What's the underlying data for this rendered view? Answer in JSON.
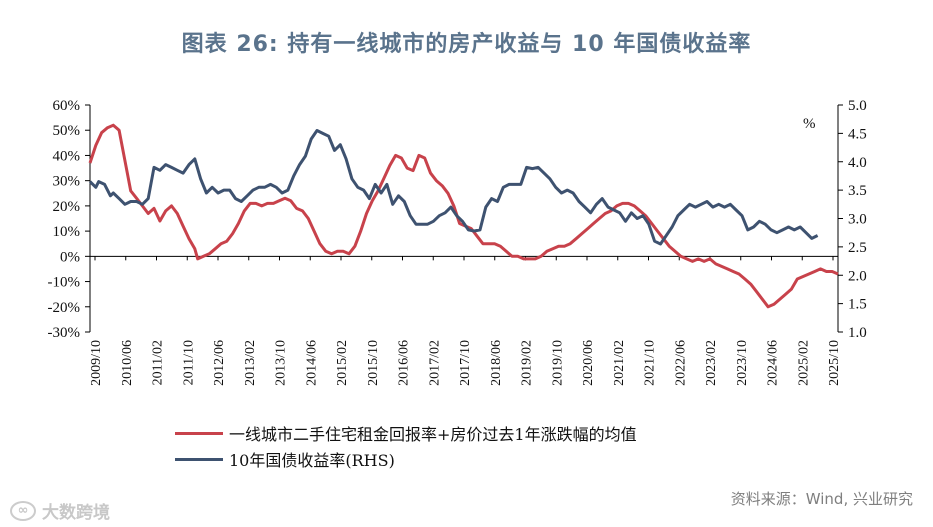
{
  "title": "图表 26: 持有一线城市的房产收益与 10 年国债收益率",
  "source": "资料来源：Wind, 兴业研究",
  "watermark": "大数跨境",
  "watermark_logo": "∞",
  "colors": {
    "red": "#c8424b",
    "blue": "#3e5270"
  },
  "chart_data": {
    "type": "line",
    "title": "图表 26: 持有一线城市的房产收益与 10 年国债收益率",
    "y_left": {
      "ticks": [
        "60%",
        "50%",
        "40%",
        "30%",
        "20%",
        "10%",
        "0%",
        "-10%",
        "-20%",
        "-30%"
      ],
      "range": [
        -30,
        60
      ]
    },
    "y_right": {
      "ticks": [
        "5.0",
        "4.5",
        "4.0",
        "3.5",
        "3.0",
        "2.5",
        "2.0",
        "1.5",
        "1.0"
      ],
      "range": [
        1.0,
        5.0
      ],
      "unit": "%"
    },
    "x_ticks": [
      "2009/10",
      "2010/06",
      "2011/02",
      "2011/10",
      "2012/06",
      "2013/02",
      "2013/10",
      "2014/06",
      "2015/02",
      "2015/10",
      "2016/06",
      "2017/02",
      "2017/10",
      "2018/06",
      "2019/02",
      "2019/10",
      "2020/06",
      "2021/02",
      "2021/10",
      "2022/06",
      "2023/02",
      "2023/10",
      "2024/06",
      "2025/02",
      "2025/10"
    ],
    "x_range": [
      0,
      192
    ],
    "series": [
      {
        "name": "一线城市二手住宅租金回报率+房价过去1年涨跌幅的均值",
        "axis": "left",
        "color": "#c8424b",
        "points": [
          [
            0,
            37
          ],
          [
            2,
            44
          ],
          [
            4,
            49
          ],
          [
            6,
            51
          ],
          [
            8,
            52
          ],
          [
            10,
            50
          ],
          [
            12,
            38
          ],
          [
            14,
            26
          ],
          [
            16,
            23
          ],
          [
            18,
            20
          ],
          [
            20,
            17
          ],
          [
            22,
            19
          ],
          [
            24,
            14
          ],
          [
            26,
            18
          ],
          [
            28,
            20
          ],
          [
            30,
            17
          ],
          [
            32,
            12
          ],
          [
            34,
            7
          ],
          [
            36,
            3
          ],
          [
            37,
            -1
          ],
          [
            39,
            0
          ],
          [
            41,
            1
          ],
          [
            43,
            3
          ],
          [
            45,
            5
          ],
          [
            47,
            6
          ],
          [
            49,
            9
          ],
          [
            51,
            13
          ],
          [
            53,
            18
          ],
          [
            55,
            21
          ],
          [
            57,
            21
          ],
          [
            59,
            20
          ],
          [
            61,
            21
          ],
          [
            63,
            21
          ],
          [
            65,
            22
          ],
          [
            67,
            23
          ],
          [
            69,
            22
          ],
          [
            71,
            19
          ],
          [
            73,
            18
          ],
          [
            75,
            15
          ],
          [
            77,
            10
          ],
          [
            79,
            5
          ],
          [
            81,
            2
          ],
          [
            83,
            1
          ],
          [
            85,
            2
          ],
          [
            87,
            2
          ],
          [
            89,
            1
          ],
          [
            91,
            4
          ],
          [
            93,
            10
          ],
          [
            95,
            17
          ],
          [
            97,
            22
          ],
          [
            99,
            26
          ],
          [
            101,
            31
          ],
          [
            103,
            36
          ],
          [
            105,
            40
          ],
          [
            107,
            39
          ],
          [
            109,
            35
          ],
          [
            111,
            34
          ],
          [
            113,
            40
          ],
          [
            115,
            39
          ],
          [
            117,
            33
          ],
          [
            119,
            30
          ],
          [
            121,
            28
          ],
          [
            123,
            25
          ],
          [
            125,
            20
          ],
          [
            127,
            13
          ],
          [
            129,
            12
          ],
          [
            131,
            11
          ],
          [
            133,
            8
          ],
          [
            135,
            5
          ],
          [
            137,
            5
          ],
          [
            139,
            5
          ],
          [
            141,
            4
          ],
          [
            143,
            2
          ],
          [
            145,
            0
          ],
          [
            147,
            0
          ],
          [
            149,
            -1
          ],
          [
            151,
            -1
          ],
          [
            153,
            -1
          ],
          [
            155,
            0
          ],
          [
            157,
            2
          ],
          [
            159,
            3
          ],
          [
            161,
            4
          ],
          [
            163,
            4
          ],
          [
            165,
            5
          ],
          [
            167,
            7
          ],
          [
            169,
            9
          ],
          [
            171,
            11
          ],
          [
            173,
            13
          ],
          [
            175,
            15
          ],
          [
            177,
            17
          ],
          [
            179,
            18
          ],
          [
            181,
            20
          ],
          [
            183,
            21
          ],
          [
            185,
            21
          ],
          [
            187,
            20
          ],
          [
            189,
            18
          ],
          [
            191,
            16
          ]
        ],
        "points_cont": [
          [
            193,
            13
          ],
          [
            195,
            10
          ],
          [
            197,
            7
          ],
          [
            199,
            4
          ],
          [
            201,
            2
          ],
          [
            203,
            0
          ],
          [
            205,
            -1
          ],
          [
            207,
            -2
          ],
          [
            209,
            -1
          ],
          [
            211,
            -2
          ],
          [
            213,
            -1
          ],
          [
            215,
            -3
          ],
          [
            217,
            -4
          ],
          [
            219,
            -5
          ],
          [
            221,
            -6
          ],
          [
            223,
            -7
          ],
          [
            225,
            -9
          ],
          [
            227,
            -11
          ],
          [
            229,
            -14
          ],
          [
            231,
            -17
          ],
          [
            233,
            -20
          ],
          [
            235,
            -19
          ],
          [
            237,
            -17
          ],
          [
            239,
            -15
          ],
          [
            241,
            -13
          ],
          [
            243,
            -9
          ],
          [
            245,
            -8
          ],
          [
            247,
            -7
          ],
          [
            249,
            -6
          ],
          [
            251,
            -5
          ],
          [
            253,
            -6
          ],
          [
            255,
            -6
          ],
          [
            257,
            -7
          ]
        ]
      },
      {
        "name": "10年国债收益率(RHS)",
        "axis": "right",
        "color": "#3e5270",
        "points": [
          [
            0,
            3.65
          ],
          [
            2,
            3.55
          ],
          [
            3,
            3.65
          ],
          [
            5,
            3.6
          ],
          [
            7,
            3.4
          ],
          [
            8,
            3.45
          ],
          [
            10,
            3.35
          ],
          [
            12,
            3.25
          ],
          [
            14,
            3.3
          ],
          [
            16,
            3.3
          ],
          [
            18,
            3.25
          ],
          [
            20,
            3.35
          ],
          [
            22,
            3.9
          ],
          [
            24,
            3.85
          ],
          [
            26,
            3.95
          ],
          [
            28,
            3.9
          ],
          [
            30,
            3.85
          ],
          [
            32,
            3.8
          ],
          [
            34,
            3.95
          ],
          [
            36,
            4.05
          ],
          [
            38,
            3.7
          ],
          [
            40,
            3.45
          ],
          [
            42,
            3.55
          ],
          [
            44,
            3.45
          ],
          [
            46,
            3.5
          ],
          [
            48,
            3.5
          ],
          [
            50,
            3.35
          ],
          [
            52,
            3.3
          ],
          [
            54,
            3.4
          ],
          [
            56,
            3.5
          ],
          [
            58,
            3.55
          ],
          [
            60,
            3.55
          ],
          [
            62,
            3.6
          ],
          [
            64,
            3.55
          ],
          [
            66,
            3.45
          ],
          [
            68,
            3.5
          ],
          [
            70,
            3.75
          ],
          [
            72,
            3.95
          ],
          [
            74,
            4.1
          ],
          [
            76,
            4.4
          ],
          [
            78,
            4.55
          ],
          [
            80,
            4.5
          ],
          [
            82,
            4.45
          ],
          [
            84,
            4.2
          ],
          [
            86,
            4.3
          ],
          [
            88,
            4.05
          ],
          [
            90,
            3.7
          ],
          [
            92,
            3.55
          ],
          [
            94,
            3.5
          ],
          [
            96,
            3.35
          ],
          [
            98,
            3.6
          ],
          [
            100,
            3.45
          ],
          [
            102,
            3.6
          ],
          [
            104,
            3.25
          ],
          [
            106,
            3.4
          ],
          [
            108,
            3.3
          ],
          [
            110,
            3.05
          ],
          [
            112,
            2.9
          ],
          [
            114,
            2.9
          ],
          [
            116,
            2.9
          ],
          [
            118,
            2.95
          ],
          [
            120,
            3.05
          ],
          [
            122,
            3.1
          ],
          [
            124,
            3.2
          ],
          [
            126,
            3.05
          ],
          [
            128,
            2.95
          ],
          [
            130,
            2.8
          ],
          [
            132,
            2.78
          ],
          [
            134,
            2.8
          ],
          [
            136,
            3.2
          ],
          [
            138,
            3.35
          ],
          [
            140,
            3.3
          ],
          [
            142,
            3.55
          ],
          [
            144,
            3.6
          ],
          [
            146,
            3.6
          ],
          [
            148,
            3.6
          ]
        ],
        "points_cont": [
          [
            150,
            3.9
          ],
          [
            152,
            3.88
          ],
          [
            154,
            3.9
          ],
          [
            156,
            3.8
          ],
          [
            158,
            3.7
          ],
          [
            160,
            3.55
          ],
          [
            162,
            3.45
          ],
          [
            164,
            3.5
          ],
          [
            166,
            3.45
          ],
          [
            168,
            3.3
          ],
          [
            170,
            3.2
          ],
          [
            172,
            3.1
          ],
          [
            174,
            3.25
          ],
          [
            176,
            3.35
          ],
          [
            178,
            3.2
          ],
          [
            180,
            3.15
          ],
          [
            182,
            3.1
          ],
          [
            184,
            2.95
          ],
          [
            186,
            3.1
          ],
          [
            188,
            3.0
          ],
          [
            190,
            3.05
          ],
          [
            192,
            2.9
          ],
          [
            194,
            2.6
          ],
          [
            196,
            2.55
          ],
          [
            198,
            2.7
          ],
          [
            200,
            2.85
          ],
          [
            202,
            3.05
          ],
          [
            204,
            3.15
          ],
          [
            206,
            3.25
          ],
          [
            208,
            3.2
          ],
          [
            210,
            3.25
          ],
          [
            212,
            3.3
          ],
          [
            214,
            3.2
          ],
          [
            216,
            3.25
          ],
          [
            218,
            3.2
          ],
          [
            220,
            3.25
          ],
          [
            222,
            3.15
          ],
          [
            224,
            3.05
          ],
          [
            226,
            2.8
          ],
          [
            228,
            2.85
          ],
          [
            230,
            2.95
          ],
          [
            232,
            2.9
          ],
          [
            234,
            2.8
          ],
          [
            236,
            2.75
          ],
          [
            238,
            2.8
          ],
          [
            240,
            2.85
          ],
          [
            242,
            2.8
          ],
          [
            244,
            2.85
          ],
          [
            246,
            2.75
          ],
          [
            248,
            2.65
          ],
          [
            250,
            2.7
          ]
        ]
      }
    ]
  }
}
